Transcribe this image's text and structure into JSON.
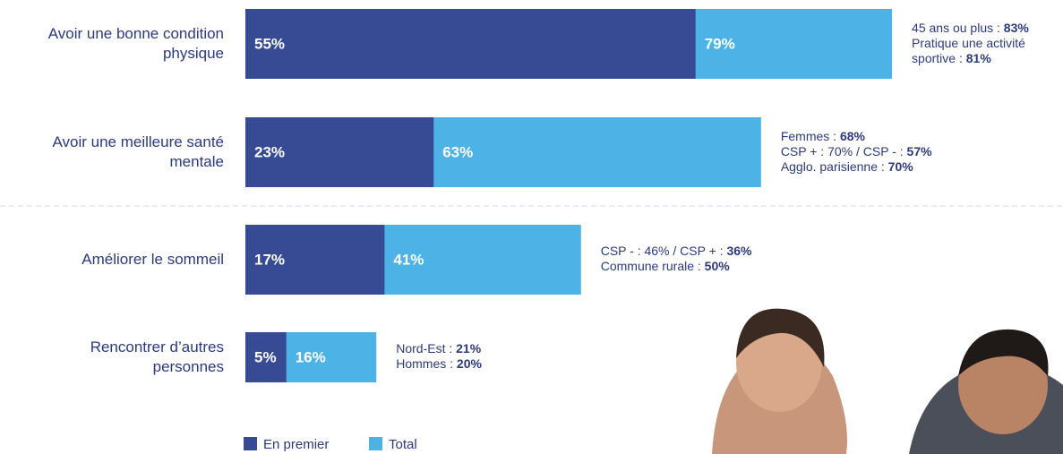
{
  "chart_data": {
    "type": "bar",
    "categories": [
      "Avoir une bonne condition physique",
      "Avoir une meilleure santé mentale",
      "Améliorer le sommeil",
      "Rencontrer d’autres personnes"
    ],
    "series": [
      {
        "name": "En premier",
        "color": "#364b93",
        "values": [
          55,
          23,
          17,
          5
        ],
        "value_labels": [
          "55%",
          "23%",
          "17%",
          "5%"
        ]
      },
      {
        "name": "Total",
        "color": "#4db3e6",
        "values": [
          79,
          63,
          41,
          16
        ],
        "value_labels": [
          "79%",
          "63%",
          "41%",
          "16%"
        ]
      }
    ],
    "annotations": [
      [
        {
          "text": "45 ans ou plus :",
          "bold": "83%"
        },
        {
          "text": "Pratique une activité sportive :",
          "bold": "81%"
        }
      ],
      [
        {
          "text": "Femmes :",
          "bold": "68%"
        },
        {
          "text": "CSP + : 70% / CSP - :",
          "bold": "57%"
        },
        {
          "text": "Agglo. parisienne :",
          "bold": "70%"
        }
      ],
      [
        {
          "text": "CSP - : 46% / CSP + :",
          "bold": "36%"
        },
        {
          "text": "Commune rurale :",
          "bold": "50%"
        }
      ],
      [
        {
          "text": "Nord-Est :",
          "bold": "21%"
        },
        {
          "text": "Hommes :",
          "bold": "20%"
        }
      ]
    ]
  }
}
